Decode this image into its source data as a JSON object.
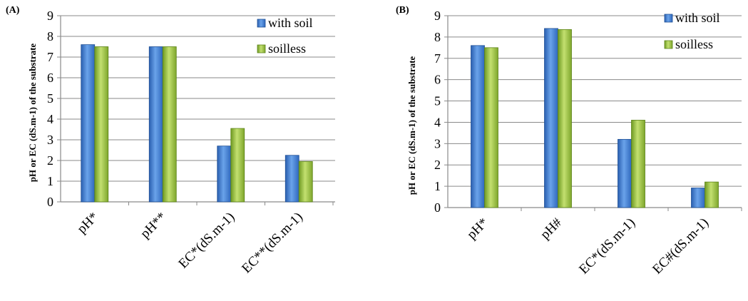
{
  "chart_data": [
    {
      "panel_label": "(A)",
      "type": "bar",
      "ylabel": "pH or EC (dS.m-1) of the substrate",
      "ylim": [
        0,
        9
      ],
      "yticks": [
        0,
        1,
        2,
        3,
        4,
        5,
        6,
        7,
        8,
        9
      ],
      "grid": true,
      "legend_position": "top-right",
      "categories": [
        "pH*",
        "pH**",
        "EC*(dS.m-1)",
        "EC**(dS.m-1)"
      ],
      "series": [
        {
          "name": "with soil",
          "color": "#3f7fd4",
          "values": [
            7.6,
            7.5,
            2.7,
            2.25
          ]
        },
        {
          "name": "soilless",
          "color": "#99c43f",
          "values": [
            7.5,
            7.5,
            3.55,
            1.95
          ]
        }
      ]
    },
    {
      "panel_label": "(B)",
      "type": "bar",
      "ylabel": "pH or EC (dS.m-1) of the substrate",
      "ylim": [
        0,
        9
      ],
      "yticks": [
        0,
        1,
        2,
        3,
        4,
        5,
        6,
        7,
        8,
        9
      ],
      "grid": true,
      "legend_position": "top-right",
      "categories": [
        "pH*",
        "pH#",
        "EC*(dS.m-1)",
        "EC#(dS.m-1)"
      ],
      "series": [
        {
          "name": "with soil",
          "color": "#3f7fd4",
          "values": [
            7.6,
            8.4,
            3.2,
            0.92
          ]
        },
        {
          "name": "soilless",
          "color": "#99c43f",
          "values": [
            7.5,
            8.35,
            4.1,
            1.2
          ]
        }
      ]
    }
  ]
}
